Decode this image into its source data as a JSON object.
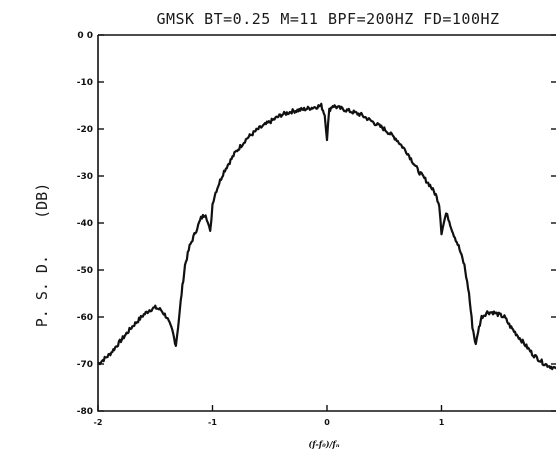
{
  "chart_data": {
    "type": "line",
    "title": "GMSK BT=0.25 M=11 BPF=200HZ FD=100HZ",
    "ylabel": "P. S. D.    (DB)",
    "xlabel": "(f-f₀)/fₙ",
    "xlim": [
      -2,
      2
    ],
    "ylim": [
      -80,
      0
    ],
    "yticks": [
      0,
      -10,
      -20,
      -30,
      -40,
      -50,
      -60,
      -70,
      -80
    ],
    "ytick_labels": [
      "0 0",
      "-10",
      "-20",
      "-30",
      "-40",
      "-50",
      "-60",
      "-70",
      "-80"
    ],
    "xticks": [
      -2,
      -1,
      0,
      1
    ],
    "xtick_labels": [
      "-2",
      "-1",
      "0",
      "1"
    ],
    "grid": false,
    "series": [
      {
        "x": [
          -2.0,
          -1.9,
          -1.8,
          -1.7,
          -1.6,
          -1.55,
          -1.5,
          -1.45,
          -1.4,
          -1.35,
          -1.32,
          -1.3,
          -1.27,
          -1.24,
          -1.2,
          -1.15,
          -1.1,
          -1.06,
          -1.04,
          -1.02,
          -1.0,
          -0.98,
          -0.95,
          -0.9,
          -0.8,
          -0.7,
          -0.6,
          -0.5,
          -0.4,
          -0.3,
          -0.2,
          -0.1,
          -0.05,
          -0.02,
          0.0,
          0.02,
          0.05,
          0.1,
          0.2,
          0.3,
          0.4,
          0.5,
          0.6,
          0.7,
          0.8,
          0.9,
          0.95,
          0.98,
          1.0,
          1.02,
          1.04,
          1.06,
          1.1,
          1.15,
          1.2,
          1.24,
          1.27,
          1.3,
          1.32,
          1.35,
          1.4,
          1.45,
          1.5,
          1.55,
          1.6,
          1.7,
          1.8,
          1.9,
          2.0
        ],
        "y": [
          -70,
          -68,
          -65,
          -62,
          -59.5,
          -58.5,
          -58,
          -58.5,
          -60,
          -63,
          -66,
          -62,
          -55,
          -49,
          -45,
          -42,
          -39,
          -38,
          -40,
          -42,
          -36,
          -34,
          -32,
          -29,
          -25,
          -22,
          -20,
          -18.5,
          -17,
          -16.2,
          -15.8,
          -15.3,
          -15,
          -17,
          -22,
          -16,
          -15,
          -15.5,
          -16.2,
          -17,
          -18.5,
          -20,
          -22,
          -25,
          -29,
          -32,
          -34,
          -36,
          -42,
          -40,
          -38,
          -39,
          -42,
          -45,
          -49,
          -55,
          -62,
          -66,
          -63,
          -60,
          -59,
          -59,
          -59.5,
          -60,
          -62,
          -65,
          -68,
          -70,
          -71
        ]
      }
    ]
  }
}
